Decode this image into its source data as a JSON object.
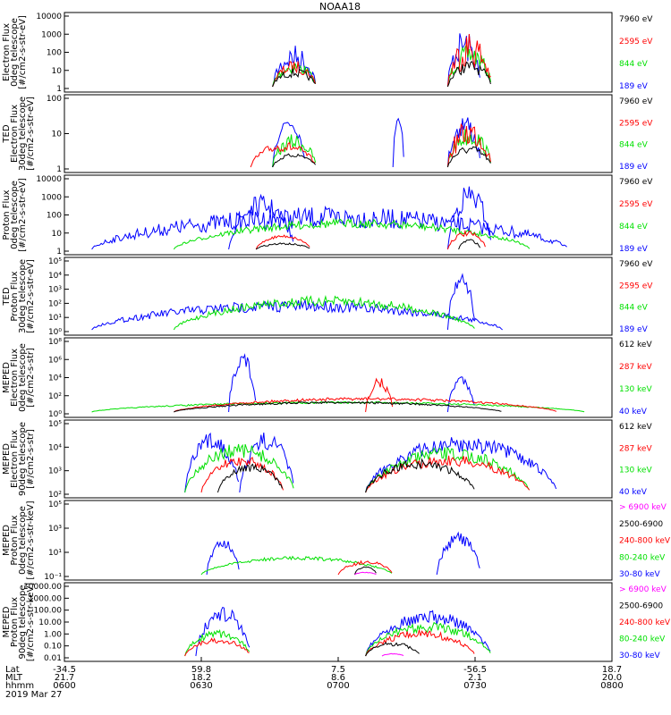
{
  "title": "NOAA18",
  "colors": {
    "black": "#000000",
    "red": "#ff0000",
    "green": "#00e000",
    "blue": "#0000ff",
    "magenta": "#ff00ff"
  },
  "panels": [
    {
      "ylabel": [
        "Electron Flux",
        "0deg telescope",
        "[#/cm2-s-str-eV]"
      ],
      "ticks": [
        "10000",
        "1000",
        "100",
        "10",
        "1"
      ],
      "legend": [
        {
          "text": "7960 eV",
          "color": "black"
        },
        {
          "text": "2595 eV",
          "color": "red"
        },
        {
          "text": "844 eV",
          "color": "green"
        },
        {
          "text": "189 eV",
          "color": "blue"
        }
      ]
    },
    {
      "ylabel": [
        "TED",
        "Electron Flux",
        "30deg telescope",
        "[#/cm2-s-str-eV]"
      ],
      "ticks": [
        "100",
        "10",
        "1"
      ],
      "legend": [
        {
          "text": "7960 eV",
          "color": "black"
        },
        {
          "text": "2595 eV",
          "color": "red"
        },
        {
          "text": "844 eV",
          "color": "green"
        },
        {
          "text": "189 eV",
          "color": "blue"
        }
      ]
    },
    {
      "ylabel": [
        "Proton Flux",
        "0deg telescope",
        "[#/cm2-s-str-eV]"
      ],
      "ticks": [
        "10000",
        "1000",
        "100",
        "10",
        "1"
      ],
      "legend": [
        {
          "text": "7960 eV",
          "color": "black"
        },
        {
          "text": "2595 eV",
          "color": "red"
        },
        {
          "text": "844 eV",
          "color": "green"
        },
        {
          "text": "189 eV",
          "color": "blue"
        }
      ]
    },
    {
      "ylabel": [
        "TED",
        "Proton Flux",
        "30deg telescope",
        "[#/cm2-s-str-eV]"
      ],
      "ticks": [
        "10⁵",
        "10⁴",
        "10³",
        "10²",
        "10¹",
        "10⁰"
      ],
      "legend": [
        {
          "text": "7960 eV",
          "color": "black"
        },
        {
          "text": "2595 eV",
          "color": "red"
        },
        {
          "text": "844 eV",
          "color": "green"
        },
        {
          "text": "189 eV",
          "color": "blue"
        }
      ]
    },
    {
      "ylabel": [
        "MEPED",
        "Electron Flux",
        "0deg telescope",
        "[#/cm2-s-str]"
      ],
      "ticks": [
        "10⁸",
        "10⁶",
        "10⁴",
        "10²",
        "10⁰"
      ],
      "legend": [
        {
          "text": "612 keV",
          "color": "black"
        },
        {
          "text": "287 keV",
          "color": "red"
        },
        {
          "text": "130 keV",
          "color": "green"
        },
        {
          "text": "40 keV",
          "color": "blue"
        }
      ]
    },
    {
      "ylabel": [
        "MEPED",
        "Electron Flux",
        "90deg telescope",
        "[#/cm2-s-str]"
      ],
      "ticks": [
        "10⁵",
        "10⁴",
        "10³",
        "10²"
      ],
      "legend": [
        {
          "text": "612 keV",
          "color": "black"
        },
        {
          "text": "287 keV",
          "color": "red"
        },
        {
          "text": "130 keV",
          "color": "green"
        },
        {
          "text": "40 keV",
          "color": "blue"
        }
      ]
    },
    {
      "ylabel": [
        "MEPED",
        "Proton Flux",
        "0deg telescope",
        "[#/cm2-s-str-keV]"
      ],
      "ticks": [
        "10⁵",
        "10³",
        "10¹",
        "10⁻¹"
      ],
      "legend": [
        {
          "text": "> 6900 keV",
          "color": "magenta"
        },
        {
          "text": "2500-6900",
          "color": "black"
        },
        {
          "text": "240-800 keV",
          "color": "red"
        },
        {
          "text": "80-240 keV",
          "color": "green"
        },
        {
          "text": "30-80 keV",
          "color": "blue"
        }
      ]
    },
    {
      "ylabel": [
        "MEPED",
        "Proton Flux",
        "90deg telescope",
        "[#/cm2-s-str-keV]"
      ],
      "ticks": [
        "10000.00",
        "1000.00",
        "100.00",
        "10.00",
        "1.00",
        "0.10",
        "0.01"
      ],
      "legend": [
        {
          "text": "> 6900 keV",
          "color": "magenta"
        },
        {
          "text": "2500-6900",
          "color": "black"
        },
        {
          "text": "240-800 keV",
          "color": "red"
        },
        {
          "text": "80-240 keV",
          "color": "green"
        },
        {
          "text": "30-80 keV",
          "color": "blue"
        }
      ]
    }
  ],
  "xaxis": {
    "row_labels": [
      "Lat",
      "MLT",
      "hhmm"
    ],
    "columns": [
      {
        "lat": "-34.5",
        "mlt": "21.7",
        "hhmm": "0600"
      },
      {
        "lat": "59.8",
        "mlt": "18.2",
        "hhmm": "0630"
      },
      {
        "lat": "7.5",
        "mlt": "8.6",
        "hhmm": "0700"
      },
      {
        "lat": "-56.5",
        "mlt": "2.1",
        "hhmm": "0730"
      },
      {
        "lat": "18.7",
        "mlt": "20.0",
        "hhmm": "0800"
      }
    ],
    "date": "2019 Mar 27"
  },
  "chart_data": {
    "type": "line",
    "x_ticks": [
      "0600",
      "0630",
      "0700",
      "0730",
      "0800"
    ],
    "panels": [
      {
        "name": "TED Electron Flux 0deg",
        "series": [
          {
            "name": "189 eV",
            "blobs": [
              [
                0.38,
                0.46,
                60,
                0.6
              ],
              [
                0.7,
                0.76,
                80,
                0.6
              ]
            ]
          },
          {
            "name": "844 eV",
            "blobs": [
              [
                0.38,
                0.46,
                40,
                0.5
              ],
              [
                0.7,
                0.78,
                60,
                0.5
              ]
            ]
          },
          {
            "name": "2595 eV",
            "blobs": [
              [
                0.38,
                0.46,
                40,
                0.5
              ],
              [
                0.7,
                0.78,
                80,
                0.7
              ]
            ]
          },
          {
            "name": "7960 eV",
            "blobs": [
              [
                0.38,
                0.46,
                30,
                0.5
              ],
              [
                0.7,
                0.78,
                40,
                0.5
              ]
            ]
          }
        ]
      },
      {
        "name": "TED Electron Flux 30deg",
        "series": [
          {
            "name": "189 eV",
            "blobs": [
              [
                0.38,
                0.44,
                75,
                0.3
              ],
              [
                0.6,
                0.62,
                80,
                0.2
              ],
              [
                0.7,
                0.76,
                80,
                0.5
              ]
            ]
          },
          {
            "name": "844 eV",
            "blobs": [
              [
                0.38,
                0.46,
                50,
                0.5
              ],
              [
                0.7,
                0.78,
                60,
                0.5
              ]
            ]
          },
          {
            "name": "2595 eV",
            "blobs": [
              [
                0.34,
                0.46,
                40,
                0.4
              ],
              [
                0.7,
                0.78,
                70,
                0.6
              ]
            ]
          },
          {
            "name": "7960 eV",
            "blobs": [
              [
                0.38,
                0.46,
                25,
                0.3
              ],
              [
                0.7,
                0.78,
                35,
                0.4
              ]
            ]
          }
        ]
      },
      {
        "name": "TED Proton Flux 0deg",
        "series": [
          {
            "name": "189 eV",
            "blobs": [
              [
                0.05,
                0.92,
                60,
                0.5
              ],
              [
                0.3,
                0.42,
                75,
                0.4
              ],
              [
                0.7,
                0.78,
                90,
                0.4
              ]
            ]
          },
          {
            "name": "844 eV",
            "blobs": [
              [
                0.2,
                0.85,
                45,
                0.3
              ]
            ]
          },
          {
            "name": "2595 eV",
            "blobs": [
              [
                0.35,
                0.45,
                25,
                0.2
              ],
              [
                0.7,
                0.77,
                30,
                0.3
              ]
            ]
          },
          {
            "name": "7960 eV",
            "blobs": [
              [
                0.35,
                0.45,
                15,
                0.3
              ],
              [
                0.72,
                0.76,
                20,
                0.3
              ]
            ]
          }
        ]
      },
      {
        "name": "TED Proton Flux 30deg",
        "series": [
          {
            "name": "189 eV",
            "blobs": [
              [
                0.05,
                0.8,
                45,
                0.4
              ],
              [
                0.7,
                0.75,
                85,
                0.3
              ]
            ]
          },
          {
            "name": "844 eV",
            "blobs": [
              [
                0.2,
                0.75,
                50,
                0.3
              ]
            ]
          }
        ]
      },
      {
        "name": "MEPED Electron Flux 0deg",
        "series": [
          {
            "name": "40 keV",
            "blobs": [
              [
                0.3,
                0.35,
                85,
                0.3
              ],
              [
                0.7,
                0.75,
                55,
                0.3
              ]
            ]
          },
          {
            "name": "130 keV",
            "blobs": [
              [
                0.05,
                0.95,
                20,
                0.2
              ]
            ]
          },
          {
            "name": "287 keV",
            "blobs": [
              [
                0.2,
                0.9,
                25,
                0.2
              ],
              [
                0.55,
                0.6,
                50,
                0.3
              ]
            ]
          },
          {
            "name": "612 keV",
            "blobs": [
              [
                0.2,
                0.8,
                20,
                0.2
              ]
            ]
          }
        ]
      },
      {
        "name": "MEPED Electron Flux 90deg",
        "series": [
          {
            "name": "40 keV",
            "blobs": [
              [
                0.22,
                0.32,
                85,
                0.3
              ],
              [
                0.32,
                0.42,
                85,
                0.3
              ],
              [
                0.55,
                0.9,
                80,
                0.3
              ]
            ]
          },
          {
            "name": "130 keV",
            "blobs": [
              [
                0.22,
                0.42,
                70,
                0.3
              ],
              [
                0.55,
                0.85,
                65,
                0.3
              ]
            ]
          },
          {
            "name": "287 keV",
            "blobs": [
              [
                0.25,
                0.4,
                55,
                0.3
              ],
              [
                0.55,
                0.85,
                55,
                0.3
              ]
            ]
          },
          {
            "name": "612 keV",
            "blobs": [
              [
                0.28,
                0.4,
                45,
                0.3
              ],
              [
                0.55,
                0.75,
                50,
                0.3
              ]
            ]
          }
        ]
      },
      {
        "name": "MEPED Proton Flux 0deg",
        "series": [
          {
            "name": "30-80 keV",
            "blobs": [
              [
                0.26,
                0.32,
                55,
                0.3
              ],
              [
                0.68,
                0.76,
                60,
                0.3
              ]
            ]
          },
          {
            "name": "80-240 keV",
            "blobs": [
              [
                0.25,
                0.6,
                30,
                0.2
              ]
            ]
          },
          {
            "name": "240-800 keV",
            "blobs": [
              [
                0.5,
                0.6,
                25,
                0.3
              ]
            ]
          },
          {
            "name": "2500-6900",
            "blobs": [
              [
                0.53,
                0.57,
                18,
                0.3
              ]
            ]
          },
          {
            "name": "> 6900 keV",
            "blobs": [
              [
                0.53,
                0.57,
                10,
                0.3
              ]
            ]
          }
        ]
      },
      {
        "name": "MEPED Proton Flux 90deg",
        "series": [
          {
            "name": "30-80 keV",
            "blobs": [
              [
                0.24,
                0.34,
                70,
                0.3
              ],
              [
                0.55,
                0.78,
                65,
                0.3
              ]
            ]
          },
          {
            "name": "80-240 keV",
            "blobs": [
              [
                0.22,
                0.34,
                40,
                0.3
              ],
              [
                0.55,
                0.78,
                50,
                0.3
              ]
            ]
          },
          {
            "name": "240-800 keV",
            "blobs": [
              [
                0.22,
                0.34,
                30,
                0.3
              ],
              [
                0.55,
                0.75,
                40,
                0.3
              ]
            ]
          },
          {
            "name": "2500-6900",
            "blobs": [
              [
                0.55,
                0.65,
                25,
                0.3
              ]
            ]
          },
          {
            "name": "> 6900 keV",
            "blobs": [
              [
                0.58,
                0.62,
                10,
                0.3
              ]
            ]
          }
        ]
      }
    ]
  }
}
